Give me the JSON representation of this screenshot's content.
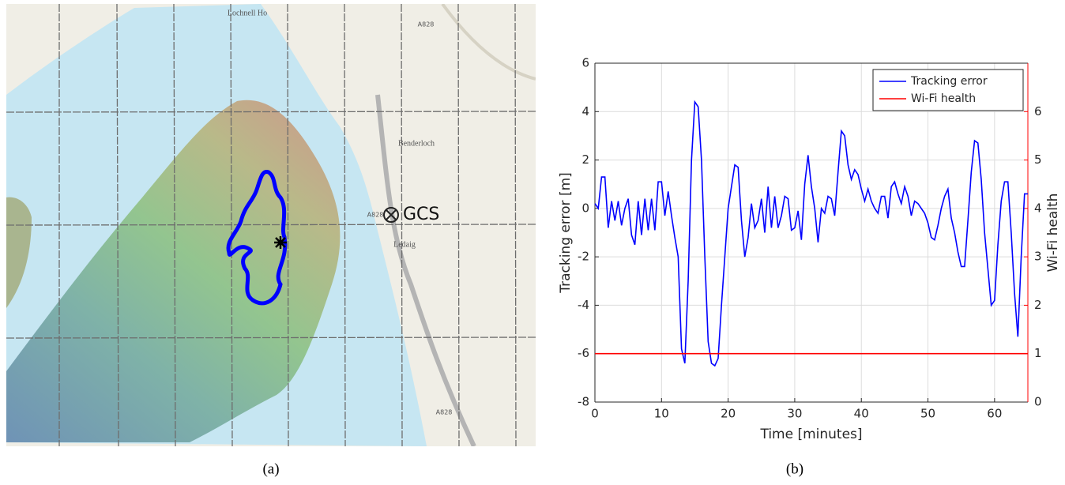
{
  "map": {
    "labels": [
      "Lochnell Ho",
      "Benderloch",
      "Ledaig",
      "A828",
      "A828",
      "A828"
    ],
    "marker_label": "GCS"
  },
  "captions": [
    "(a)",
    "(b)"
  ],
  "chart_data": {
    "type": "line",
    "xlabel": "Time [minutes]",
    "ylabel": "Tracking error [m]",
    "y2label": "Wi-Fi health",
    "xlim": [
      0,
      65
    ],
    "xticks": [
      0,
      10,
      20,
      30,
      40,
      50,
      60
    ],
    "ylim": [
      -8,
      6
    ],
    "yticks": [
      -8,
      -6,
      -4,
      -2,
      0,
      2,
      4,
      6
    ],
    "y2lim": [
      0,
      7
    ],
    "y2ticks": [
      0,
      1,
      2,
      3,
      4,
      5,
      6
    ],
    "grid": true,
    "legend": "upper right",
    "series": [
      {
        "name": "Tracking error",
        "color": "#0000ff",
        "x": [
          0,
          0.5,
          1,
          1.5,
          2,
          2.5,
          3,
          3.5,
          4,
          4.5,
          5,
          5.5,
          6,
          6.5,
          7,
          7.5,
          8,
          8.5,
          9,
          9.5,
          10,
          10.5,
          11,
          11.5,
          12,
          12.5,
          13,
          13.5,
          14,
          14.5,
          15,
          15.5,
          16,
          16.5,
          17,
          17.5,
          18,
          18.5,
          19,
          19.5,
          20,
          21,
          21.5,
          22,
          22.5,
          23,
          23.5,
          24,
          24.5,
          25,
          25.5,
          26,
          26.5,
          27,
          27.5,
          28,
          28.5,
          29,
          29.5,
          30,
          30.5,
          31,
          31.5,
          32,
          32.5,
          33,
          33.5,
          34,
          34.5,
          35,
          35.5,
          36,
          36.5,
          37,
          37.5,
          38,
          38.5,
          39,
          39.5,
          40,
          40.5,
          41,
          41.5,
          42,
          42.5,
          43,
          43.5,
          44,
          44.5,
          45,
          45.5,
          46,
          46.5,
          47,
          47.5,
          48,
          48.5,
          49,
          49.5,
          50,
          50.5,
          51,
          51.5,
          52,
          52.5,
          53,
          53.5,
          54,
          54.5,
          55,
          55.5,
          56,
          56.5,
          57,
          57.5,
          58,
          58.5,
          59,
          59.5,
          60,
          60.5,
          61,
          61.5,
          62,
          62.5,
          63,
          63.5,
          64,
          64.5,
          65
        ],
        "values": [
          0.2,
          0,
          1.3,
          1.3,
          -0.8,
          0.3,
          -0.5,
          0.3,
          -0.7,
          0,
          0.4,
          -1.1,
          -1.5,
          0.3,
          -1.1,
          0.4,
          -0.9,
          0.4,
          -0.9,
          1.1,
          1.1,
          -0.3,
          0.7,
          -0.3,
          -1.2,
          -2,
          -5.8,
          -6.4,
          -3,
          2,
          4.4,
          4.2,
          2,
          -2,
          -5.5,
          -6.4,
          -6.5,
          -6.2,
          -4,
          -2,
          0,
          1.8,
          1.7,
          -0.5,
          -2,
          -1.2,
          0.2,
          -0.8,
          -0.5,
          0.4,
          -1,
          0.9,
          -0.8,
          0.5,
          -0.8,
          -0.3,
          0.5,
          0.4,
          -0.9,
          -0.8,
          -0.1,
          -1.3,
          1,
          2.2,
          0.9,
          0,
          -1.4,
          0,
          -0.2,
          0.5,
          0.4,
          -0.3,
          1.5,
          3.2,
          3,
          1.8,
          1.2,
          1.6,
          1.4,
          0.8,
          0.3,
          0.8,
          0.3,
          0,
          -0.2,
          0.5,
          0.5,
          -0.4,
          0.9,
          1.1,
          0.6,
          0.2,
          0.9,
          0.5,
          -0.3,
          0.3,
          0.2,
          0,
          -0.2,
          -0.6,
          -1.2,
          -1.3,
          -0.7,
          0,
          0.5,
          0.8,
          -0.4,
          -1,
          -1.8,
          -2.4,
          -2.4,
          -0.5,
          1.5,
          2.8,
          2.7,
          1.2,
          -1,
          -2.5,
          -4,
          -3.8,
          -1.5,
          0.3,
          1.1,
          1.1,
          -1,
          -3.5,
          -5.3,
          -2,
          0.6,
          0.6
        ]
      },
      {
        "name": "Wi-Fi health",
        "color": "#ff0000",
        "axis": "y2",
        "x": [
          0,
          65
        ],
        "values": [
          1,
          1
        ]
      }
    ]
  }
}
